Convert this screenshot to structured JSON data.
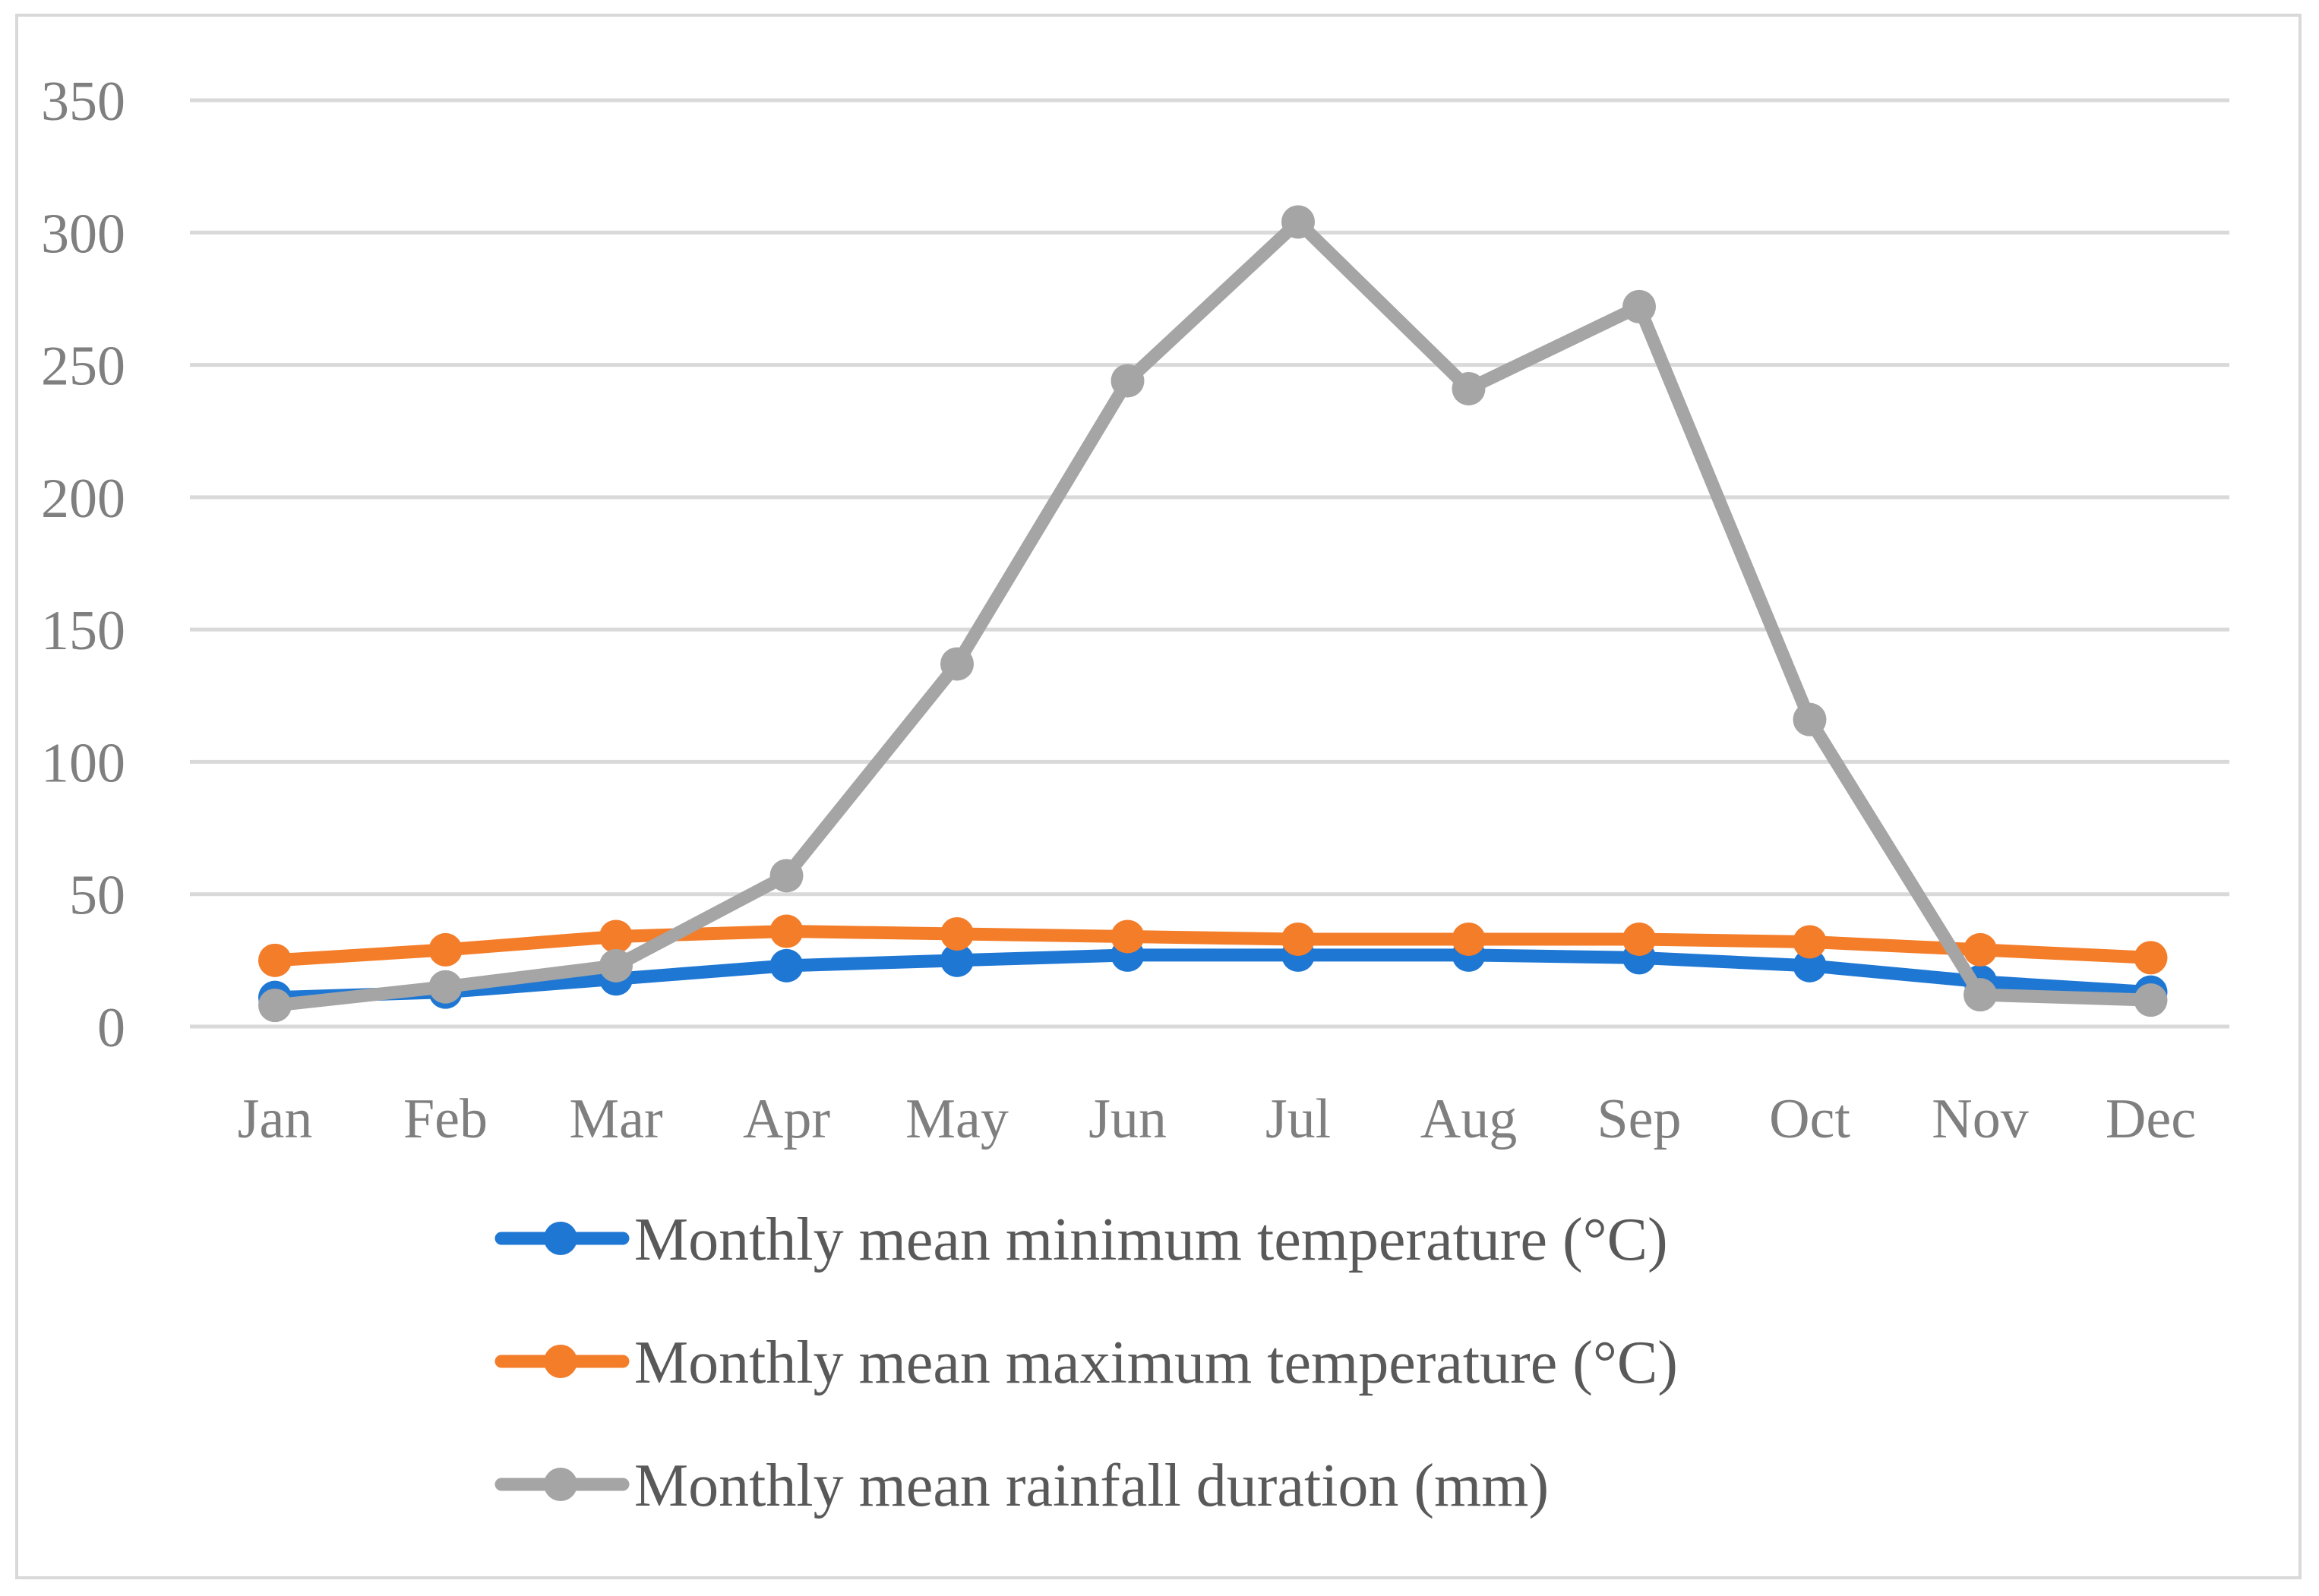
{
  "chart_data": {
    "type": "line",
    "categories": [
      "Jan",
      "Feb",
      "Mar",
      "Apr",
      "May",
      "Jun",
      "Jul",
      "Aug",
      "Sep",
      "Oct",
      "Nov",
      "Dec"
    ],
    "ylim": [
      0,
      350
    ],
    "yticks": [
      0,
      50,
      100,
      150,
      200,
      250,
      300,
      350
    ],
    "grid": true,
    "legend_position": "bottom",
    "series": [
      {
        "name": "Monthly mean minimum temperature (°C)",
        "color": "#1f77d4",
        "values": [
          11,
          13,
          18,
          23,
          25,
          27,
          27,
          27,
          26,
          23,
          17,
          13
        ]
      },
      {
        "name": "Monthly mean maximum temperature (°C)",
        "color": "#f47d2a",
        "values": [
          25,
          29,
          34,
          36,
          35,
          34,
          33,
          33,
          33,
          32,
          29,
          26
        ]
      },
      {
        "name": "Monthly mean rainfall duration (mm)",
        "color": "#a5a5a5",
        "values": [
          8,
          15,
          23,
          57,
          137,
          244,
          304,
          241,
          272,
          116,
          12,
          10
        ]
      }
    ]
  }
}
